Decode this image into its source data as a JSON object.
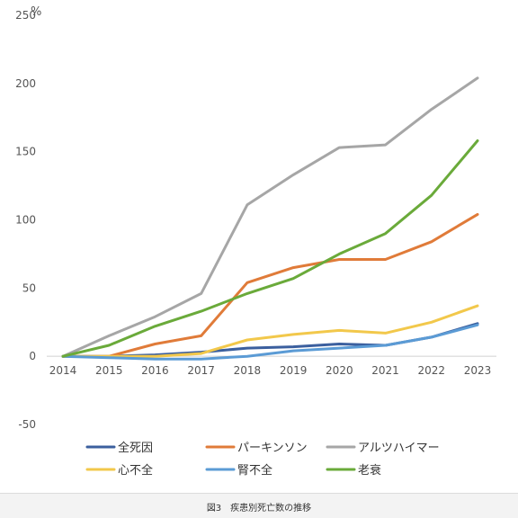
{
  "caption": "図3　疾患別死亡数の推移",
  "chart_data": {
    "type": "line",
    "x": [
      "2014",
      "2015",
      "2016",
      "2017",
      "2018",
      "2019",
      "2020",
      "2021",
      "2022",
      "2023"
    ],
    "ylim": [
      -50,
      250
    ],
    "yticks": [
      -50,
      0,
      50,
      100,
      150,
      200,
      250
    ],
    "unit": "%",
    "grid": false,
    "legend_position": "bottom",
    "series": [
      {
        "name": "全死因",
        "color": "#3b5f9e",
        "values": [
          0,
          0,
          1,
          3,
          6,
          7,
          9,
          8,
          14,
          24
        ]
      },
      {
        "name": "パーキンソン",
        "color": "#e07b39",
        "values": [
          0,
          0,
          9,
          15,
          54,
          65,
          71,
          71,
          84,
          104
        ]
      },
      {
        "name": "アルツハイマー",
        "color": "#a6a6a6",
        "values": [
          0,
          15,
          29,
          46,
          111,
          133,
          153,
          155,
          181,
          204
        ]
      },
      {
        "name": "心不全",
        "color": "#f2c84b",
        "values": [
          0,
          0,
          0,
          2,
          12,
          16,
          19,
          17,
          25,
          37
        ]
      },
      {
        "name": "腎不全",
        "color": "#5b9bd5",
        "values": [
          0,
          -1,
          -2,
          -2,
          0,
          4,
          6,
          8,
          14,
          23
        ]
      },
      {
        "name": "老衰",
        "color": "#6aaa3a",
        "values": [
          0,
          8,
          22,
          33,
          46,
          57,
          75,
          90,
          118,
          158
        ]
      }
    ]
  }
}
